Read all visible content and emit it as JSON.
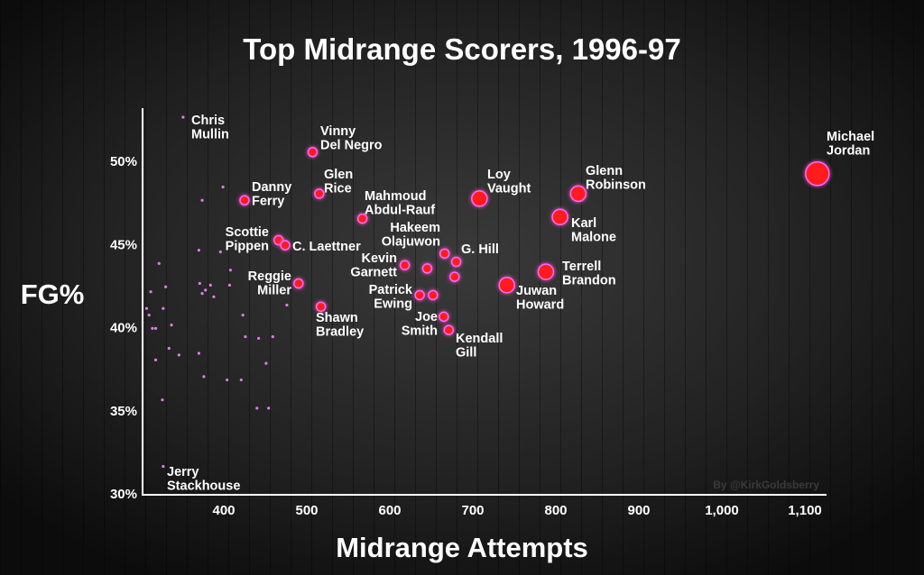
{
  "chart_data": {
    "type": "scatter",
    "title": "Top Midrange Scorers, 1996-97",
    "xlabel": "Midrange Attempts",
    "ylabel": "FG%",
    "xlim": [
      300,
      1130
    ],
    "ylim": [
      30,
      53
    ],
    "x_ticks": [
      {
        "value": 400,
        "label": "400"
      },
      {
        "value": 500,
        "label": "500"
      },
      {
        "value": 600,
        "label": "600"
      },
      {
        "value": 700,
        "label": "700"
      },
      {
        "value": 800,
        "label": "800"
      },
      {
        "value": 900,
        "label": "900"
      },
      {
        "value": 1000,
        "label": "1,000"
      },
      {
        "value": 1100,
        "label": "1,100"
      }
    ],
    "y_ticks": [
      {
        "value": 30,
        "label": "30%"
      },
      {
        "value": 35,
        "label": "35%"
      },
      {
        "value": 40,
        "label": "40%"
      },
      {
        "value": 45,
        "label": "45%"
      },
      {
        "value": 50,
        "label": "50%"
      }
    ],
    "grid": false,
    "colors": {
      "marker_fill": "#ff1a1a",
      "marker_glow": "#ff66ff",
      "small_marker": "#e27ae8",
      "background": "#1e1e1e"
    },
    "watermark": "By @KirkGoldsberry",
    "labeled_points": [
      {
        "name": [
          "Chris",
          "Mullin"
        ],
        "x": 351,
        "y": 52.6,
        "size_class": 0
      },
      {
        "name": [
          "Vinny",
          "Del Negro"
        ],
        "x": 507,
        "y": 50.5,
        "size_class": 1
      },
      {
        "name": [
          "Danny",
          "Ferry"
        ],
        "x": 425,
        "y": 47.6,
        "size_class": 1
      },
      {
        "name": [
          "Glen",
          "Rice"
        ],
        "x": 515,
        "y": 48.0,
        "size_class": 1
      },
      {
        "name": [
          "Mahmoud",
          "Abdul-Rauf"
        ],
        "x": 567,
        "y": 46.5,
        "size_class": 1
      },
      {
        "name": [
          "Scottie",
          "Pippen"
        ],
        "x": 466,
        "y": 45.2,
        "size_class": 1
      },
      {
        "name": [
          "C. Laettner"
        ],
        "x": 474,
        "y": 44.9,
        "size_class": 1
      },
      {
        "name": [
          "Hakeem",
          "Olajuwon"
        ],
        "x": 666,
        "y": 44.4,
        "size_class": 1
      },
      {
        "name": [
          "G. Hill"
        ],
        "x": 680,
        "y": 43.9,
        "size_class": 1
      },
      {
        "name": [
          "Kevin",
          "Garnett"
        ],
        "x": 618,
        "y": 43.7,
        "size_class": 1
      },
      {
        "name": [
          "Patrick",
          "Ewing"
        ],
        "x": 636,
        "y": 41.9,
        "size_class": 1
      },
      {
        "name": [
          "Reggie",
          "Miller"
        ],
        "x": 490,
        "y": 42.6,
        "size_class": 1
      },
      {
        "name": [
          "Shawn",
          "Bradley"
        ],
        "x": 517,
        "y": 41.2,
        "size_class": 1
      },
      {
        "name": [
          "Joe",
          "Smith"
        ],
        "x": 665,
        "y": 40.6,
        "size_class": 1
      },
      {
        "name": [
          "Kendall",
          "Gill"
        ],
        "x": 671,
        "y": 39.8,
        "size_class": 1
      },
      {
        "name": [
          "Loy",
          "Vaught"
        ],
        "x": 708,
        "y": 47.7,
        "size_class": 2
      },
      {
        "name": [
          "Glenn",
          "Robinson"
        ],
        "x": 827,
        "y": 48.0,
        "size_class": 2
      },
      {
        "name": [
          "Karl",
          "Malone"
        ],
        "x": 805,
        "y": 46.6,
        "size_class": 2
      },
      {
        "name": [
          "Terrell",
          "Brandon"
        ],
        "x": 788,
        "y": 43.3,
        "size_class": 2
      },
      {
        "name": [
          "Juwan",
          "Howard"
        ],
        "x": 741,
        "y": 42.5,
        "size_class": 2
      },
      {
        "name": [
          "Michael",
          "Jordan"
        ],
        "x": 1115,
        "y": 49.2,
        "size_class": 3
      },
      {
        "name": [
          "Jerry",
          "Stackhouse"
        ],
        "x": 327,
        "y": 31.6,
        "size_class": 0
      }
    ],
    "unlabeled_points": [
      {
        "x": 645,
        "y": 43.5,
        "size_class": 1
      },
      {
        "x": 678,
        "y": 43.0,
        "size_class": 1
      },
      {
        "x": 652,
        "y": 41.9,
        "size_class": 1
      },
      {
        "x": 399,
        "y": 48.4,
        "size_class": 0
      },
      {
        "x": 374,
        "y": 47.6,
        "size_class": 0
      },
      {
        "x": 370,
        "y": 44.6,
        "size_class": 0
      },
      {
        "x": 396,
        "y": 44.5,
        "size_class": 0
      },
      {
        "x": 322,
        "y": 43.8,
        "size_class": 0
      },
      {
        "x": 408,
        "y": 43.4,
        "size_class": 0
      },
      {
        "x": 371,
        "y": 42.6,
        "size_class": 0
      },
      {
        "x": 407,
        "y": 42.5,
        "size_class": 0
      },
      {
        "x": 330,
        "y": 42.4,
        "size_class": 0
      },
      {
        "x": 384,
        "y": 42.5,
        "size_class": 0
      },
      {
        "x": 378,
        "y": 42.2,
        "size_class": 0
      },
      {
        "x": 312,
        "y": 42.1,
        "size_class": 0
      },
      {
        "x": 374,
        "y": 42.0,
        "size_class": 0
      },
      {
        "x": 388,
        "y": 41.8,
        "size_class": 0
      },
      {
        "x": 476,
        "y": 41.3,
        "size_class": 0
      },
      {
        "x": 307,
        "y": 41.1,
        "size_class": 0
      },
      {
        "x": 327,
        "y": 41.1,
        "size_class": 0
      },
      {
        "x": 310,
        "y": 40.7,
        "size_class": 0
      },
      {
        "x": 423,
        "y": 40.7,
        "size_class": 0
      },
      {
        "x": 314,
        "y": 39.9,
        "size_class": 0
      },
      {
        "x": 318,
        "y": 39.9,
        "size_class": 0
      },
      {
        "x": 337,
        "y": 40.1,
        "size_class": 0
      },
      {
        "x": 426,
        "y": 39.4,
        "size_class": 0
      },
      {
        "x": 442,
        "y": 39.3,
        "size_class": 0
      },
      {
        "x": 459,
        "y": 39.4,
        "size_class": 0
      },
      {
        "x": 334,
        "y": 38.7,
        "size_class": 0
      },
      {
        "x": 346,
        "y": 38.3,
        "size_class": 0
      },
      {
        "x": 370,
        "y": 38.4,
        "size_class": 0
      },
      {
        "x": 318,
        "y": 38.0,
        "size_class": 0
      },
      {
        "x": 451,
        "y": 37.8,
        "size_class": 0
      },
      {
        "x": 376,
        "y": 37.0,
        "size_class": 0
      },
      {
        "x": 404,
        "y": 36.8,
        "size_class": 0
      },
      {
        "x": 421,
        "y": 36.8,
        "size_class": 0
      },
      {
        "x": 326,
        "y": 35.6,
        "size_class": 0
      },
      {
        "x": 440,
        "y": 35.1,
        "size_class": 0
      },
      {
        "x": 454,
        "y": 35.1,
        "size_class": 0
      }
    ]
  }
}
